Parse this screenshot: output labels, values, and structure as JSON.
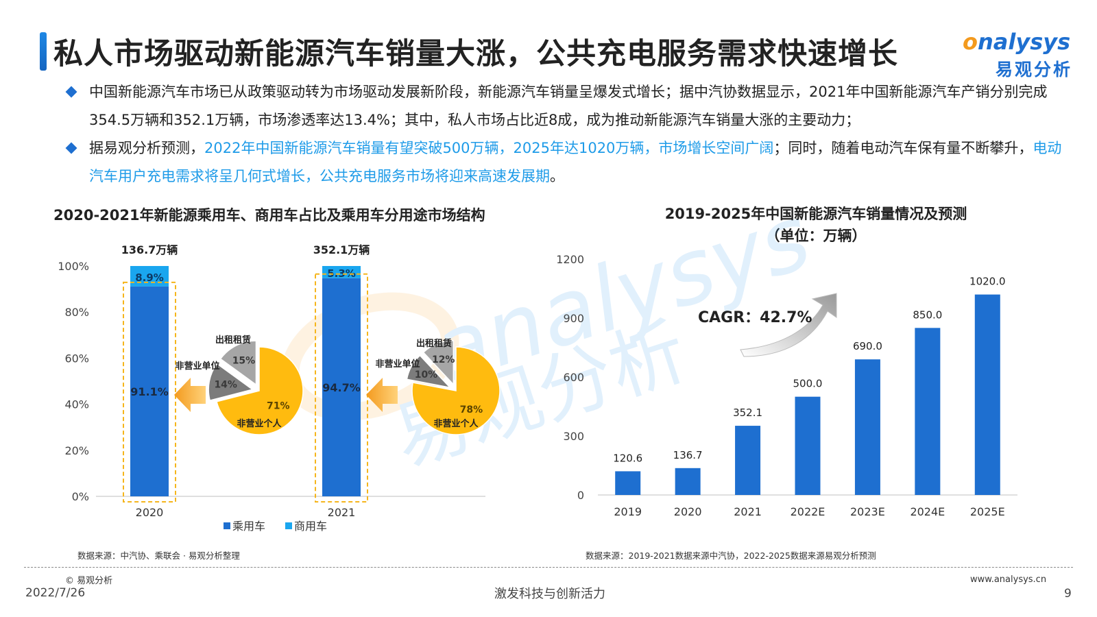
{
  "header": {
    "title": "私人市场驱动新能源汽车销量大涨，公共充电服务需求快速增长",
    "logo_en_o": "o",
    "logo_en_rest": "nalysys",
    "logo_cn": "易观分析"
  },
  "bullets": [
    {
      "parts": [
        {
          "text": "中国新能源汽车市场已从政策驱动转为市场驱动发展新阶段，新能源汽车销量呈爆发式增长；据中汽协数据显示，2021年中国新能源汽车产销分别完成354.5万辆和352.1万辆，市场渗透率达13.4%；其中，私人市场占比近8成，成为推动新能源汽车销量大涨的主要动力；",
          "highlight": false
        }
      ]
    },
    {
      "parts": [
        {
          "text": "据易观分析预测，",
          "highlight": false
        },
        {
          "text": "2022年中国新能源汽车销量有望突破500万辆，2025年达1020万辆，市场增长空间广阔",
          "highlight": true
        },
        {
          "text": "；同时，随着电动汽车保有量不断攀升，",
          "highlight": false
        },
        {
          "text": "电动汽车用户充电需求将呈几何式增长，公共充电服务市场将迎来高速发展期",
          "highlight": true
        },
        {
          "text": "。",
          "highlight": false
        }
      ]
    }
  ],
  "watermark": {
    "en": "analysys",
    "cn": "易观分析"
  },
  "left_chart": {
    "title": "2020-2021年新能源乘用车、商用车占比及乘用车分用途市场结构",
    "source": "数据来源：中汽协、乘联会 · 易观分析整理"
  },
  "right_chart": {
    "title_line1": "2019-2025年中国新能源汽车销量情况及预测",
    "title_line2": "（单位：万辆）",
    "source": "数据来源：2019-2021数据来源中汽协，2022-2025数据来源易观分析预测",
    "cagr_label": "CAGR：42.7%"
  },
  "chart_data": [
    {
      "type": "bar",
      "stacked": true,
      "percent": true,
      "categories": [
        "2020",
        "2021"
      ],
      "totals_label": [
        "136.7万辆",
        "352.1万辆"
      ],
      "series": [
        {
          "name": "乘用车",
          "values": [
            91.1,
            94.7
          ],
          "labels": [
            "91.1%",
            "94.7%"
          ],
          "color": "#1e6fd0"
        },
        {
          "name": "商用车",
          "values": [
            8.9,
            5.3
          ],
          "labels": [
            "8.9%",
            "5.3%"
          ],
          "color": "#1aa6ef"
        }
      ],
      "y_ticks": [
        "0%",
        "20%",
        "40%",
        "60%",
        "80%",
        "100%"
      ],
      "ylim": [
        0,
        100
      ],
      "legend": "bottom"
    },
    {
      "type": "pie",
      "year": "2020",
      "slices": [
        {
          "name": "非营业个人",
          "value": 71,
          "label": "71%",
          "color": "#ffbb0f"
        },
        {
          "name": "非营业单位",
          "value": 14,
          "label": "14%",
          "color": "#7c7c7c"
        },
        {
          "name": "出租租赁",
          "value": 15,
          "label": "15%",
          "color": "#a6a6a6"
        }
      ]
    },
    {
      "type": "pie",
      "year": "2021",
      "slices": [
        {
          "name": "非营业个人",
          "value": 78,
          "label": "78%",
          "color": "#ffbb0f"
        },
        {
          "name": "非营业单位",
          "value": 10,
          "label": "10%",
          "color": "#7c7c7c"
        },
        {
          "name": "出租租赁",
          "value": 12,
          "label": "12%",
          "color": "#a6a6a6"
        }
      ]
    },
    {
      "type": "bar",
      "categories": [
        "2019",
        "2020",
        "2021",
        "2022E",
        "2023E",
        "2024E",
        "2025E"
      ],
      "values": [
        120.6,
        136.7,
        352.1,
        500.0,
        690.0,
        850.0,
        1020.0
      ],
      "value_labels": [
        "120.6",
        "136.7",
        "352.1",
        "500.0",
        "690.0",
        "850.0",
        "1020.0"
      ],
      "y_ticks": [
        "0",
        "300",
        "600",
        "900",
        "1200"
      ],
      "ylim": [
        0,
        1200
      ],
      "color": "#1e6fd0"
    }
  ],
  "footer": {
    "copyright": "© 易观分析",
    "url": "www.analysys.cn",
    "date": "2022/7/26",
    "slogan": "激发科技与创新活力",
    "page": "9"
  }
}
